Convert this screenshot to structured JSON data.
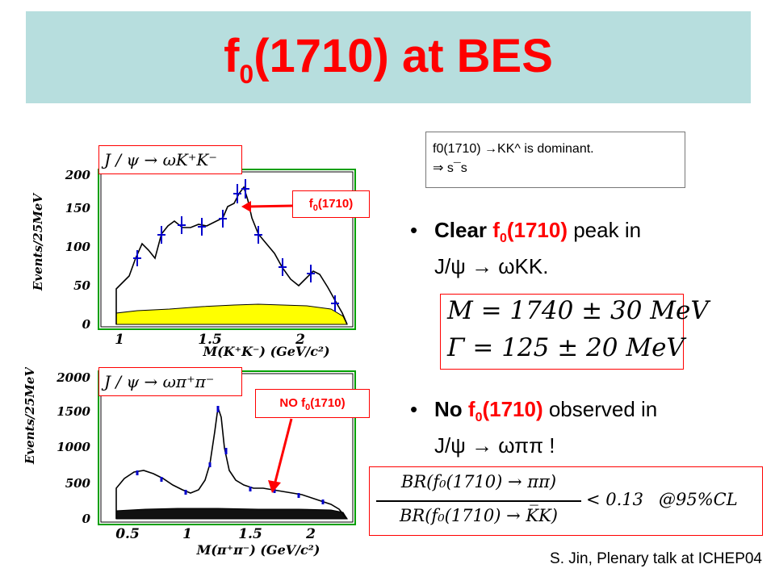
{
  "slide": {
    "title_main": "f",
    "title_sub": "0",
    "title_rest": "(1710) at BES"
  },
  "note_box": {
    "line1": "f0(1710) →KK^ is dominant.",
    "line2": "⇒ s¯s"
  },
  "plot_top": {
    "process_label": "J / ψ → ωK⁺K⁻",
    "ylabel": "Events/25MeV",
    "xlabel": "M(K⁺K⁻)  (GeV/c²)",
    "yticks": [
      "0",
      "50",
      "100",
      "150",
      "200"
    ],
    "xticks": [
      "1",
      "1.5",
      "2"
    ],
    "annotation_main": "f",
    "annotation_sub": "0",
    "annotation_rest": "(1710)"
  },
  "plot_bottom": {
    "process_label": "J / ψ → ωπ⁺π⁻",
    "ylabel": "Events/25MeV",
    "xlabel": "M(π⁺π⁻)  (GeV/c²)",
    "yticks": [
      "0",
      "500",
      "1000",
      "1500",
      "2000"
    ],
    "xticks": [
      "0.5",
      "1",
      "1.5",
      "2"
    ],
    "annotation_pre": "NO f",
    "annotation_sub": "0",
    "annotation_rest": "(1710)"
  },
  "bullet1": {
    "b1": "Clear ",
    "red1": "f",
    "red1_sub": "0",
    "red1_rest": "(1710)",
    "rest": " peak in",
    "line2": "J/ψ  →  ωKK."
  },
  "mass_box": {
    "line1": "M = 1740 ± 30  MeV",
    "line2": "Γ = 125 ± 20   MeV"
  },
  "bullet2": {
    "b1": "No ",
    "red1": "f",
    "red1_sub": "0",
    "red1_rest": "(1710)",
    "rest": " observed in",
    "line2": "J/ψ  →  ωππ  !"
  },
  "ratio_box": {
    "numerator": "BR(f₀(1710) → ππ)",
    "denominator": "BR(f₀(1710) → K̅K)",
    "relation": "< 0.13",
    "cl": "@95%CL"
  },
  "credit": "S. Jin, Plenary talk at ICHEP04",
  "colors": {
    "title": "#ff0000",
    "title_bar": "#b7dede",
    "plot_frame": "#00a000",
    "data_points": "#0000cc",
    "background_fill": "#ffff00",
    "box_border": "#ff0000"
  }
}
